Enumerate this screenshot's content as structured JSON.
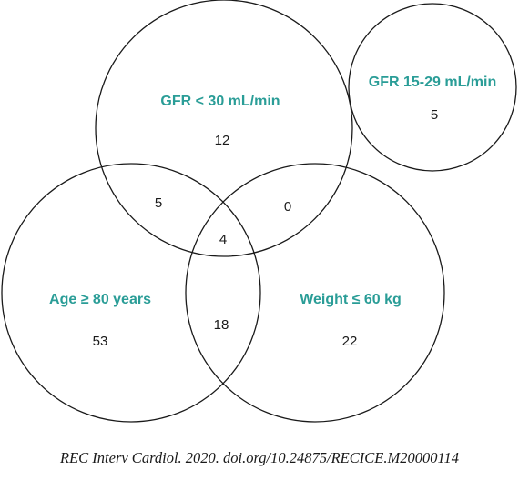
{
  "sets": {
    "gfr_lt_30": {
      "label": "GFR < 30 mL/min",
      "only": "12"
    },
    "gfr_15_29": {
      "label": "GFR 15-29 mL/min",
      "only": "5"
    },
    "age": {
      "label": "Age ≥ 80 years",
      "only": "53"
    },
    "weight": {
      "label": "Weight ≤ 60 kg",
      "only": "22"
    }
  },
  "intersections": {
    "gfr_age": "5",
    "gfr_weight": "0",
    "age_weight": "18",
    "all_three": "4"
  },
  "citation": "REC Interv Cardiol. 2020. doi.org/10.24875/RECICE.M20000114"
}
